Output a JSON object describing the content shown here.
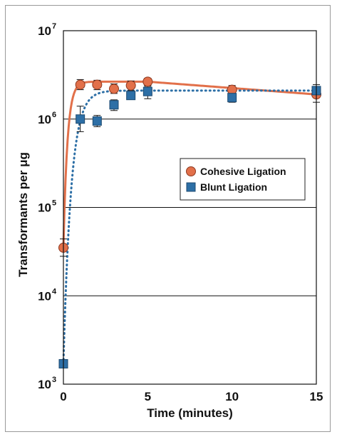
{
  "chart_data": {
    "type": "scatter",
    "title": "",
    "xlabel": "Time (minutes)",
    "ylabel": "Transformants per μg",
    "xlim": [
      0,
      15
    ],
    "ylim": [
      1000,
      10000000
    ],
    "yscale": "log",
    "x_ticks": [
      0,
      5,
      10,
      15
    ],
    "y_ticks": [
      {
        "value": 1000,
        "base": "10",
        "exp": "3"
      },
      {
        "value": 10000,
        "base": "10",
        "exp": "4"
      },
      {
        "value": 100000,
        "base": "10",
        "exp": "5"
      },
      {
        "value": 1000000,
        "base": "10",
        "exp": "6"
      },
      {
        "value": 10000000,
        "base": "10",
        "exp": "7"
      }
    ],
    "grid": "horizontal",
    "legend_position": "center-right",
    "series": [
      {
        "name": "Cohesive Ligation",
        "marker": "circle",
        "color": "#e2704a",
        "curve": "solid",
        "points": [
          {
            "x": 0,
            "y": 35000,
            "err_low": 28000,
            "err_high": 44000
          },
          {
            "x": 1,
            "y": 2450000,
            "err_low": 2150000,
            "err_high": 2800000
          },
          {
            "x": 2,
            "y": 2450000,
            "err_low": 2150000,
            "err_high": 2750000
          },
          {
            "x": 3,
            "y": 2200000,
            "err_low": 1950000,
            "err_high": 2500000
          },
          {
            "x": 4,
            "y": 2400000,
            "err_low": 2100000,
            "err_high": 2700000
          },
          {
            "x": 5,
            "y": 2650000,
            "err_low": 2400000,
            "err_high": 2900000
          },
          {
            "x": 10,
            "y": 2150000,
            "err_low": 1900000,
            "err_high": 2400000
          },
          {
            "x": 15,
            "y": 1900000,
            "err_low": 1550000,
            "err_high": 2200000
          }
        ]
      },
      {
        "name": "Blunt Ligation",
        "marker": "square",
        "color": "#2d6fa6",
        "curve": "dotted",
        "points": [
          {
            "x": 0,
            "y": 1700,
            "err_low": 1700,
            "err_high": 1700
          },
          {
            "x": 1,
            "y": 1000000,
            "err_low": 720000,
            "err_high": 1400000
          },
          {
            "x": 2,
            "y": 950000,
            "err_low": 820000,
            "err_high": 1100000
          },
          {
            "x": 3,
            "y": 1450000,
            "err_low": 1250000,
            "err_high": 1650000
          },
          {
            "x": 4,
            "y": 1850000,
            "err_low": 1700000,
            "err_high": 2050000
          },
          {
            "x": 5,
            "y": 2050000,
            "err_low": 1700000,
            "err_high": 2350000
          },
          {
            "x": 10,
            "y": 1750000,
            "err_low": 1550000,
            "err_high": 1950000
          },
          {
            "x": 15,
            "y": 2100000,
            "err_low": 1750000,
            "err_high": 2450000
          }
        ]
      }
    ]
  }
}
